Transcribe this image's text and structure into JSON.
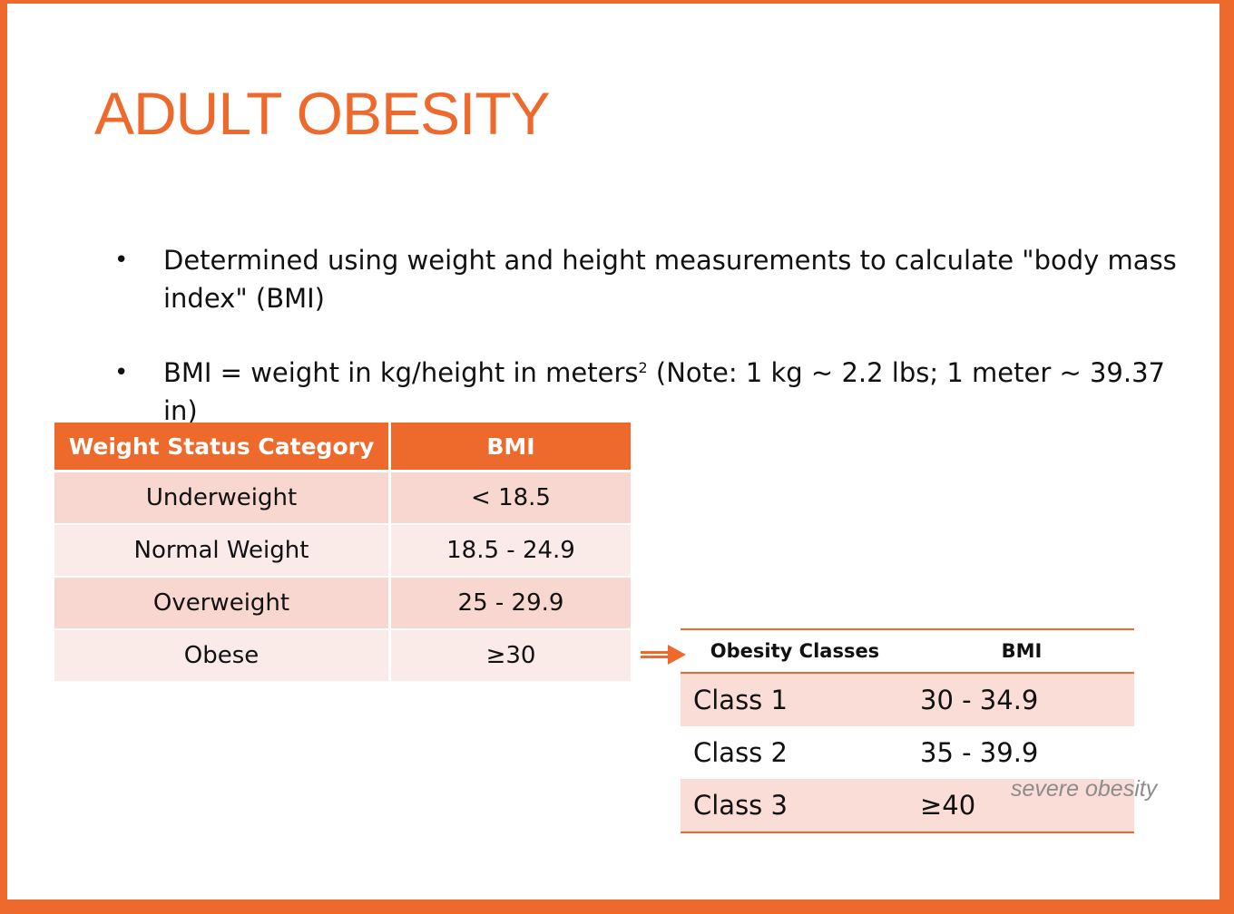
{
  "title": "ADULT OBESITY",
  "bullets": [
    {
      "text": "Determined using weight and height measurements to calculate \"body mass index\" (BMI)"
    },
    {
      "pre": "BMI = weight in kg/height in meters",
      "sup": "2",
      "post": " (Note: 1 kg ~ 2.2 lbs; 1 meter ~ 39.37 in)"
    }
  ],
  "bullet_symbol": "•",
  "weight_table": {
    "headers": [
      "Weight Status Category",
      "BMI"
    ],
    "rows": [
      [
        "Underweight",
        "< 18.5"
      ],
      [
        "Normal Weight",
        "18.5 - 24.9"
      ],
      [
        "Overweight",
        "25 - 29.9"
      ],
      [
        "Obese",
        "≥30"
      ]
    ]
  },
  "obesity_table": {
    "headers": [
      "Obesity Classes",
      "BMI"
    ],
    "rows": [
      [
        "Class 1",
        "30 - 34.9"
      ],
      [
        "Class 2",
        "35 - 39.9"
      ],
      [
        "Class 3",
        "≥40"
      ]
    ]
  },
  "note": "severe obesity",
  "colors": {
    "accent": "#ee6a2c",
    "row_dark": "#f7d7d0",
    "row_light": "#fbebe8",
    "note_gray": "#8c8c8c"
  }
}
